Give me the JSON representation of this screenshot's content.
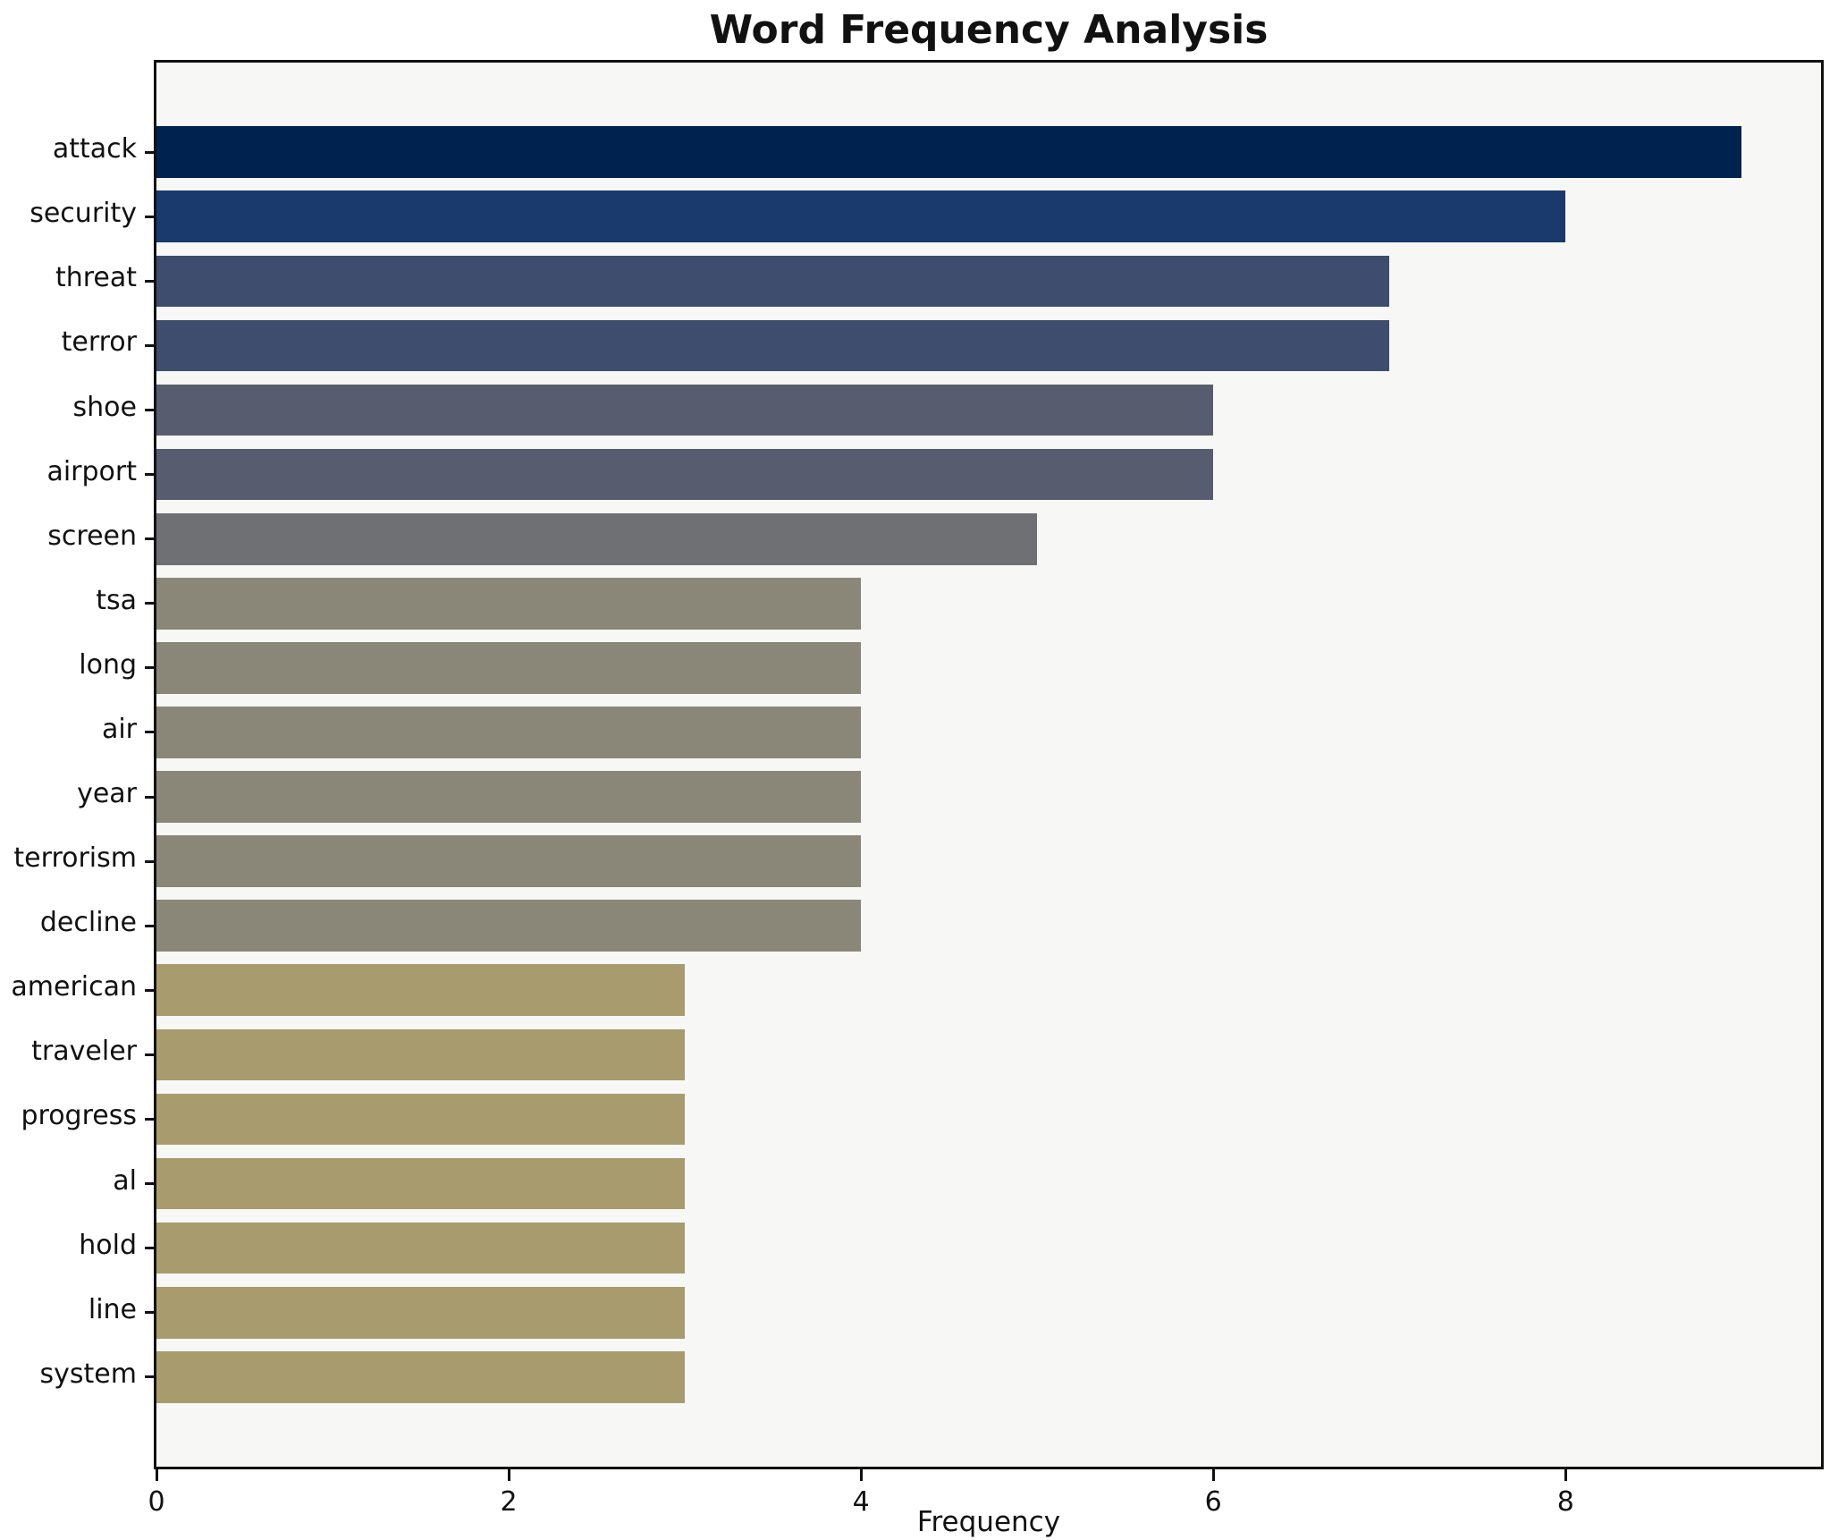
{
  "chart_data": {
    "type": "bar",
    "orientation": "horizontal",
    "title": "Word Frequency Analysis",
    "xlabel": "Frequency",
    "ylabel": "",
    "xlim": [
      0,
      9.45
    ],
    "xticks": [
      0,
      2,
      4,
      6,
      8
    ],
    "grid": false,
    "legend": null,
    "categories": [
      "attack",
      "security",
      "threat",
      "terror",
      "shoe",
      "airport",
      "screen",
      "tsa",
      "long",
      "air",
      "year",
      "terrorism",
      "decline",
      "american",
      "traveler",
      "progress",
      "al",
      "hold",
      "line",
      "system"
    ],
    "series": [
      {
        "name": "Frequency",
        "values": [
          9,
          8,
          7,
          7,
          6,
          6,
          5,
          4,
          4,
          4,
          4,
          4,
          4,
          3,
          3,
          3,
          3,
          3,
          3,
          3
        ]
      }
    ],
    "bar_colors": [
      "#00224e",
      "#1a3a6e",
      "#3e4c6d",
      "#3e4c6d",
      "#575d6f",
      "#575d6f",
      "#6e7073",
      "#8a8779",
      "#8a8779",
      "#8a8779",
      "#8a8779",
      "#8a8779",
      "#8a8779",
      "#a89b6e",
      "#a89b6e",
      "#a89b6e",
      "#a89b6e",
      "#a89b6e",
      "#a89b6e",
      "#a89b6e"
    ],
    "colors": {
      "figure_bg": "#ffffff",
      "plot_bg": "#f7f7f5",
      "spine": "#111111",
      "text": "#111111"
    }
  }
}
